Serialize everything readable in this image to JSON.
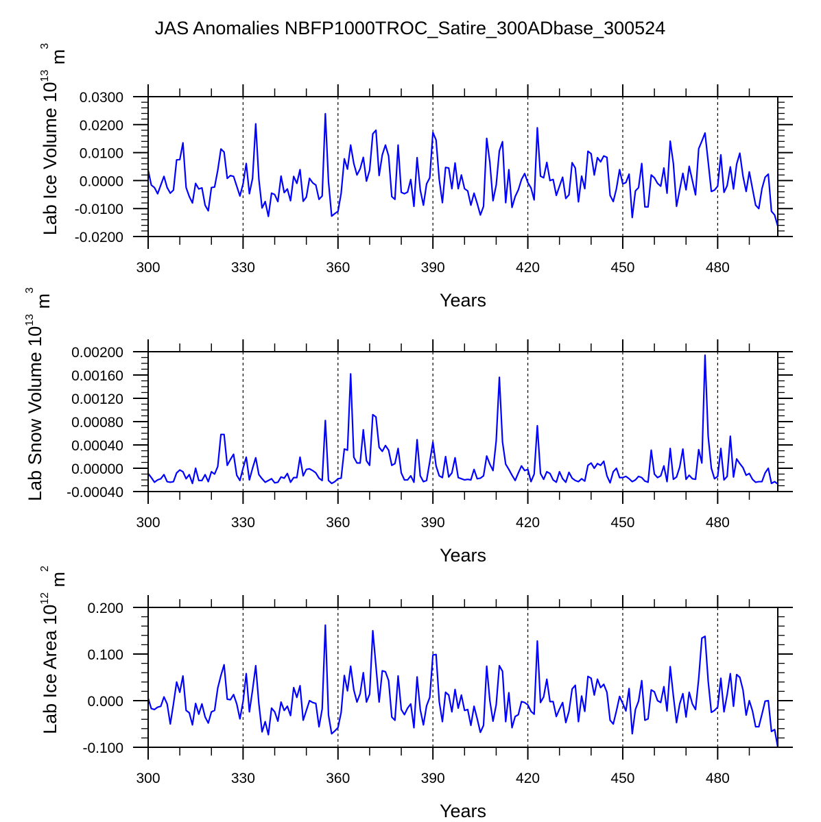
{
  "chart_data": [
    {
      "type": "line",
      "title": "JAS Anomalies NBFP1000TROC_Satire_300ADbase_300524",
      "xlabel": "Years",
      "ylabel": "Lab Ice Volume 10",
      "ylabel_exp": "13",
      "ylabel_unit": " m",
      "ylabel_unit_exp": "3",
      "xlim": [
        300,
        499
      ],
      "ylim": [
        -0.02,
        0.03
      ],
      "xticks": [
        300,
        330,
        360,
        390,
        420,
        450,
        480
      ],
      "xtick_labels": [
        "300",
        "330",
        "360",
        "390",
        "420",
        "450",
        "480"
      ],
      "yticks": [
        -0.02,
        -0.01,
        0.0,
        0.01,
        0.02,
        0.03
      ],
      "ytick_labels": [
        "-0.0200",
        "-0.0100",
        "0.0000",
        "0.0100",
        "0.0200",
        "0.0300"
      ],
      "yminor_per_major": 5,
      "vlines": [
        330,
        360,
        390,
        420,
        450,
        480
      ],
      "grid": false,
      "line_color": "#0000ff",
      "series": [
        {
          "name": "Lab Ice Volume",
          "x_start": 300,
          "values": [
            0.0037,
            -0.0016,
            -0.0025,
            -0.0047,
            -0.0016,
            0.0015,
            -0.0025,
            -0.0045,
            -0.0034,
            0.0074,
            0.0075,
            0.0135,
            -0.0025,
            -0.0057,
            -0.008,
            -0.001,
            -0.003,
            -0.0026,
            -0.0088,
            -0.0108,
            -0.0025,
            -0.0023,
            0.0037,
            0.0113,
            0.0102,
            0.0008,
            0.0018,
            0.0015,
            -0.002,
            -0.0055,
            -0.0012,
            0.0061,
            -0.0047,
            0.0008,
            0.0203,
            0.0004,
            -0.0098,
            -0.0075,
            -0.0128,
            -0.0045,
            -0.005,
            -0.0075,
            0.0016,
            -0.0043,
            -0.003,
            -0.0072,
            0.0015,
            -0.001,
            0.0039,
            -0.0074,
            -0.0059,
            0.0008,
            -0.0008,
            -0.0016,
            -0.0067,
            -0.0055,
            0.0239,
            -0.0004,
            -0.0127,
            -0.0118,
            -0.011,
            -0.0045,
            0.0078,
            0.0041,
            0.0127,
            0.0061,
            0.002,
            0.0042,
            0.0083,
            -0.0002,
            0.0037,
            0.0167,
            0.018,
            0.0018,
            0.0092,
            0.0127,
            0.0088,
            -0.0057,
            -0.0067,
            0.0127,
            -0.0042,
            -0.0047,
            -0.0041,
            0.0004,
            -0.0092,
            0.0082,
            -0.0033,
            -0.0088,
            -0.0012,
            0.001,
            0.0172,
            0.0145,
            0.0004,
            -0.0079,
            0.0047,
            0.0045,
            -0.0029,
            0.0063,
            -0.0029,
            0.002,
            -0.0029,
            -0.0037,
            -0.0088,
            -0.0045,
            -0.0082,
            -0.0123,
            -0.0092,
            0.0151,
            0.0065,
            -0.0072,
            -0.0016,
            0.0106,
            0.0139,
            -0.0079,
            0.0039,
            -0.0096,
            -0.0057,
            -0.0033,
            0.0004,
            0.0025,
            -0.0007,
            -0.0026,
            -0.0069,
            0.0189,
            0.0016,
            0.001,
            0.0065,
            0.0,
            0.0004,
            -0.0053,
            -0.002,
            0.0012,
            -0.0064,
            -0.0051,
            0.0064,
            0.0045,
            -0.0076,
            0.0016,
            -0.0029,
            0.0105,
            0.0096,
            0.002,
            0.0082,
            0.0067,
            0.0088,
            0.0083,
            -0.0053,
            -0.0075,
            -0.0029,
            0.0039,
            -0.0012,
            -0.0007,
            0.0023,
            -0.0132,
            -0.0037,
            -0.0025,
            0.0061,
            -0.0094,
            -0.0094,
            0.002,
            0.001,
            -0.001,
            -0.002,
            0.0045,
            -0.0045,
            0.0141,
            0.0061,
            -0.0092,
            -0.0033,
            0.0026,
            -0.0033,
            0.0051,
            0.0,
            -0.0051,
            0.0114,
            0.0141,
            0.017,
            0.0067,
            -0.0039,
            -0.0034,
            -0.002,
            0.0092,
            -0.0042,
            -0.0018,
            0.0049,
            -0.003,
            0.0059,
            0.0098,
            0.0016,
            -0.0039,
            0.0031,
            -0.0029,
            -0.0088,
            -0.01,
            -0.0029,
            0.0012,
            0.0023,
            -0.011,
            -0.0123,
            -0.0163
          ]
        }
      ]
    },
    {
      "type": "line",
      "xlabel": "Years",
      "ylabel": "Lab Snow Volume 10",
      "ylabel_exp": "13",
      "ylabel_unit": " m",
      "ylabel_unit_exp": "3",
      "xlim": [
        300,
        499
      ],
      "ylim": [
        -0.0004,
        0.002
      ],
      "xticks": [
        300,
        330,
        360,
        390,
        420,
        450,
        480
      ],
      "xtick_labels": [
        "300",
        "330",
        "360",
        "390",
        "420",
        "450",
        "480"
      ],
      "yticks": [
        -0.0004,
        0.0,
        0.0004,
        0.0008,
        0.0012,
        0.0016,
        0.002
      ],
      "ytick_labels": [
        "-0.00040",
        "0.00000",
        "0.00040",
        "0.00080",
        "0.00120",
        "0.00160",
        "0.00200"
      ],
      "yminor_per_major": 4,
      "vlines": [
        330,
        360,
        390,
        420,
        450,
        480
      ],
      "grid": false,
      "line_color": "#0000ff",
      "series": [
        {
          "name": "Lab Snow Volume",
          "x_start": 300,
          "values": [
            -9e-05,
            -0.00016,
            -0.00024,
            -0.0002,
            -0.00018,
            -0.00011,
            -0.00023,
            -0.00024,
            -0.00023,
            -8e-05,
            -3e-05,
            -6e-05,
            -0.00018,
            -0.00011,
            -0.00026,
            0.0,
            -0.00021,
            -0.00021,
            -0.00011,
            -0.00023,
            -6e-05,
            -0.0001,
            3e-05,
            0.00058,
            0.00058,
            5e-05,
            0.00015,
            0.00024,
            -0.00012,
            -0.00021,
            0.0,
            0.00019,
            -0.0002,
            0.0,
            0.00018,
            -0.00011,
            -0.00018,
            -0.00024,
            -0.00021,
            -0.00018,
            -0.00025,
            -0.00024,
            -0.00015,
            -0.00017,
            -9e-05,
            -0.00024,
            -0.00016,
            -0.00016,
            0.00019,
            -0.00013,
            -2e-05,
            -1e-05,
            -4e-05,
            -8e-05,
            -0.00017,
            -0.00021,
            0.00082,
            -0.00021,
            -0.00026,
            -0.00023,
            -0.00018,
            -0.00017,
            0.00033,
            0.00031,
            0.00162,
            0.00019,
            9e-05,
            9e-05,
            0.00066,
            0.00013,
            5e-05,
            0.00092,
            0.00088,
            0.00036,
            0.00029,
            0.00039,
            0.00031,
            5e-05,
            8e-05,
            0.00034,
            -8e-05,
            -0.0002,
            -0.0002,
            -0.00013,
            -0.00024,
            0.00049,
            -0.00013,
            -0.00023,
            -0.00021,
            0.00011,
            0.00045,
            4e-05,
            -0.00013,
            -0.00016,
            0.0002,
            -0.00015,
            -8e-05,
            0.00018,
            -0.00016,
            -0.00018,
            -0.0002,
            -0.00019,
            -0.0002,
            -2e-05,
            -0.00018,
            -0.00017,
            -0.00013,
            0.00021,
            7e-05,
            -4e-05,
            0.00047,
            0.00156,
            0.00045,
            7e-05,
            -2e-05,
            -0.00012,
            -0.00021,
            -8e-05,
            4e-05,
            -4e-05,
            -2e-05,
            -0.00023,
            -0.0001,
            0.00073,
            -9e-05,
            -0.00019,
            -6e-05,
            -9e-05,
            -0.0002,
            -0.00024,
            -6e-05,
            -0.00018,
            -0.00024,
            -7e-05,
            -0.00017,
            -0.00021,
            -0.00023,
            -0.00018,
            -0.00022,
            5e-05,
            9e-05,
            0.0,
            8e-05,
            5e-05,
            0.00012,
            -0.00013,
            -0.00025,
            -6e-05,
            0.0,
            -0.00016,
            -0.00016,
            -0.00014,
            -0.00018,
            -0.00023,
            -0.0002,
            -0.00014,
            -0.00016,
            -0.00022,
            -0.00024,
            0.00031,
            -0.0001,
            -0.00016,
            -0.00013,
            4e-05,
            -0.00023,
            0.00034,
            -0.00019,
            -0.00015,
            2e-05,
            0.00033,
            -0.00019,
            -0.00012,
            -0.00018,
            -0.00019,
            0.00032,
            9e-05,
            0.00194,
            0.00055,
            0.0,
            -0.00018,
            -0.00014,
            0.00034,
            -0.0002,
            -0.00014,
            0.00055,
            -0.00015,
            0.00016,
            8e-05,
            1e-05,
            -0.00012,
            -9e-05,
            -0.00019,
            -0.00024,
            -0.00023,
            -0.00023,
            -8e-05,
            0.0,
            -0.00026,
            -0.00023,
            -0.00027
          ]
        }
      ]
    },
    {
      "type": "line",
      "xlabel": "Years",
      "ylabel": "Lab Ice Area 10",
      "ylabel_exp": "12",
      "ylabel_unit": " m",
      "ylabel_unit_exp": "2",
      "xlim": [
        300,
        499
      ],
      "ylim": [
        -0.1,
        0.2
      ],
      "xticks": [
        300,
        330,
        360,
        390,
        420,
        450,
        480
      ],
      "xtick_labels": [
        "300",
        "330",
        "360",
        "390",
        "420",
        "450",
        "480"
      ],
      "yticks": [
        -0.1,
        0.0,
        0.1,
        0.2
      ],
      "ytick_labels": [
        "-0.100",
        "0.000",
        "0.100",
        "0.200"
      ],
      "yminor_per_major": 5,
      "vlines": [
        330,
        360,
        390,
        420,
        450,
        480
      ],
      "grid": false,
      "line_color": "#0000ff",
      "series": [
        {
          "name": "Lab Ice Area",
          "x_start": 300,
          "values": [
            0.005,
            -0.017,
            -0.019,
            -0.014,
            -0.012,
            0.008,
            -0.007,
            -0.05,
            -0.007,
            0.04,
            0.018,
            0.053,
            -0.021,
            -0.026,
            -0.052,
            -0.006,
            -0.029,
            -0.007,
            -0.035,
            -0.048,
            -0.024,
            -0.021,
            0.027,
            0.054,
            0.077,
            0.003,
            0.002,
            0.013,
            -0.007,
            -0.039,
            -0.002,
            0.058,
            -0.024,
            0.023,
            0.075,
            -0.007,
            -0.067,
            -0.045,
            -0.073,
            -0.016,
            -0.024,
            -0.044,
            -0.003,
            -0.021,
            -0.012,
            -0.032,
            0.028,
            0.007,
            0.032,
            -0.042,
            -0.021,
            0.0,
            -0.004,
            -0.006,
            -0.056,
            -0.018,
            0.162,
            -0.031,
            -0.071,
            -0.065,
            -0.058,
            -0.025,
            0.054,
            0.021,
            0.074,
            0.023,
            -0.003,
            0.015,
            0.06,
            -0.003,
            0.014,
            0.15,
            0.074,
            -0.003,
            0.064,
            0.062,
            0.043,
            -0.035,
            -0.042,
            0.053,
            -0.019,
            -0.03,
            -0.016,
            -0.007,
            -0.058,
            0.051,
            -0.019,
            -0.052,
            -0.011,
            0.007,
            0.098,
            0.099,
            -0.002,
            -0.045,
            0.018,
            0.012,
            -0.024,
            0.024,
            -0.016,
            0.012,
            -0.021,
            -0.019,
            -0.053,
            -0.012,
            -0.039,
            -0.068,
            -0.053,
            0.074,
            0.0,
            -0.044,
            -0.009,
            0.075,
            0.063,
            -0.045,
            0.017,
            -0.058,
            -0.034,
            -0.03,
            -0.002,
            -0.004,
            -0.009,
            -0.023,
            -0.029,
            0.128,
            -0.004,
            0.008,
            0.046,
            -0.002,
            -0.002,
            -0.034,
            -0.018,
            -0.004,
            -0.047,
            -0.023,
            0.025,
            0.033,
            -0.045,
            0.01,
            -0.023,
            0.052,
            0.048,
            0.012,
            0.046,
            0.028,
            0.035,
            0.018,
            -0.042,
            -0.05,
            -0.022,
            0.009,
            -0.006,
            -0.022,
            0.026,
            -0.071,
            -0.019,
            -0.001,
            0.043,
            -0.042,
            -0.039,
            0.023,
            0.019,
            0.0,
            -0.004,
            0.03,
            -0.022,
            0.073,
            0.01,
            -0.047,
            -0.007,
            0.015,
            -0.035,
            0.018,
            -0.007,
            -0.019,
            0.047,
            0.134,
            0.138,
            0.042,
            -0.025,
            -0.021,
            -0.014,
            0.048,
            -0.024,
            0.013,
            0.058,
            -0.012,
            0.056,
            0.05,
            0.023,
            -0.031,
            0.0,
            -0.022,
            -0.056,
            -0.056,
            -0.029,
            -0.001,
            0.0,
            -0.066,
            -0.062,
            -0.1
          ]
        }
      ]
    }
  ]
}
